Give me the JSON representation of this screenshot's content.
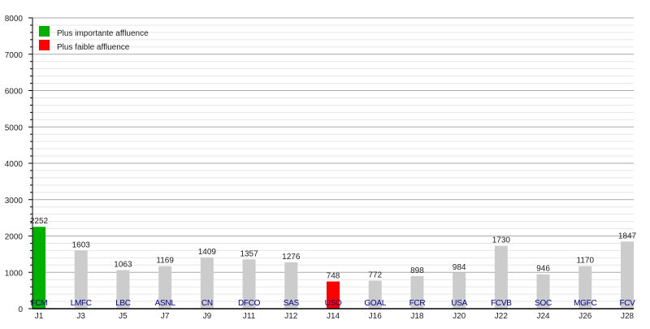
{
  "chart_data": {
    "type": "bar",
    "categories": [
      "J1",
      "J3",
      "J5",
      "J7",
      "J9",
      "J11",
      "J12",
      "J14",
      "J16",
      "J18",
      "J20",
      "J22",
      "J24",
      "J26",
      "J28"
    ],
    "teams": [
      "FCM",
      "LMFC",
      "LBC",
      "ASNL",
      "CN",
      "DFCO",
      "SAS",
      "USO",
      "GOAL",
      "FCR",
      "USA",
      "FCVB",
      "SOC",
      "MGFC",
      "FCV"
    ],
    "values": [
      2252,
      1603,
      1063,
      1169,
      1409,
      1357,
      1276,
      748,
      772,
      898,
      984,
      1730,
      946,
      1170,
      1847
    ],
    "ylim": [
      0,
      8000
    ],
    "yticks": [
      0,
      1000,
      2000,
      3000,
      4000,
      5000,
      6000,
      7000,
      8000
    ],
    "grid": true,
    "legend_position": "top-left",
    "legend": [
      {
        "label": "Plus importante affluence",
        "color": "#00b000"
      },
      {
        "label": "Plus faible affluence",
        "color": "#ff0000"
      }
    ],
    "highlight": {
      "max_index": 0,
      "min_index": 7
    },
    "colors": {
      "default_bar": "#cccccc",
      "max_bar": "#00b000",
      "min_bar": "#ff0000",
      "team_label": "#00008b"
    }
  }
}
